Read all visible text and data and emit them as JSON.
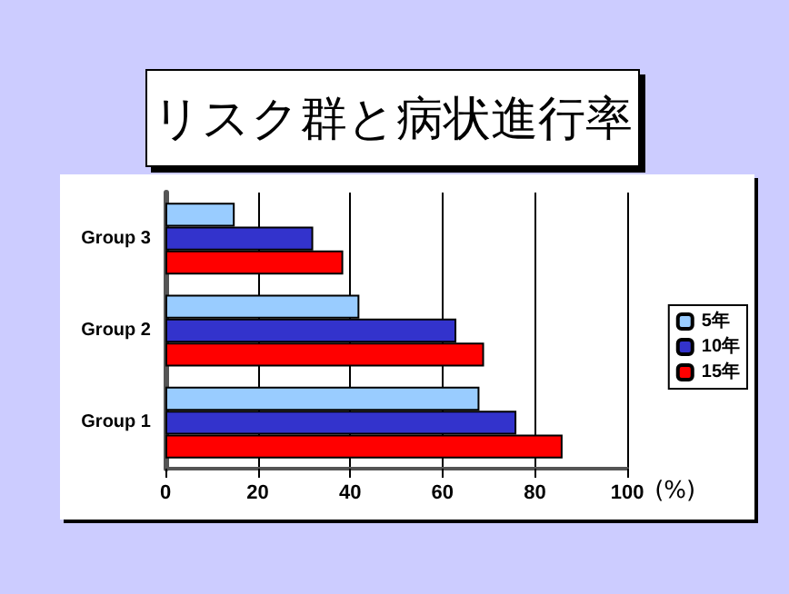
{
  "chart_data": {
    "type": "bar",
    "orientation": "horizontal",
    "title": "リスク群と病状進行率",
    "xlabel": "(%)",
    "categories": [
      "Group 3",
      "Group 2",
      "Group 1"
    ],
    "series": [
      {
        "name": "5年",
        "color": "#99ccff",
        "values": [
          15,
          42,
          68
        ]
      },
      {
        "name": "10年",
        "color": "#3333cc",
        "values": [
          32,
          63,
          76
        ]
      },
      {
        "name": "15年",
        "color": "#ff0000",
        "values": [
          38.5,
          69,
          86
        ]
      }
    ],
    "xlim": [
      0,
      100
    ],
    "xticks": [
      0,
      20,
      40,
      60,
      80,
      100
    ],
    "grid": "x",
    "legend": "right"
  }
}
